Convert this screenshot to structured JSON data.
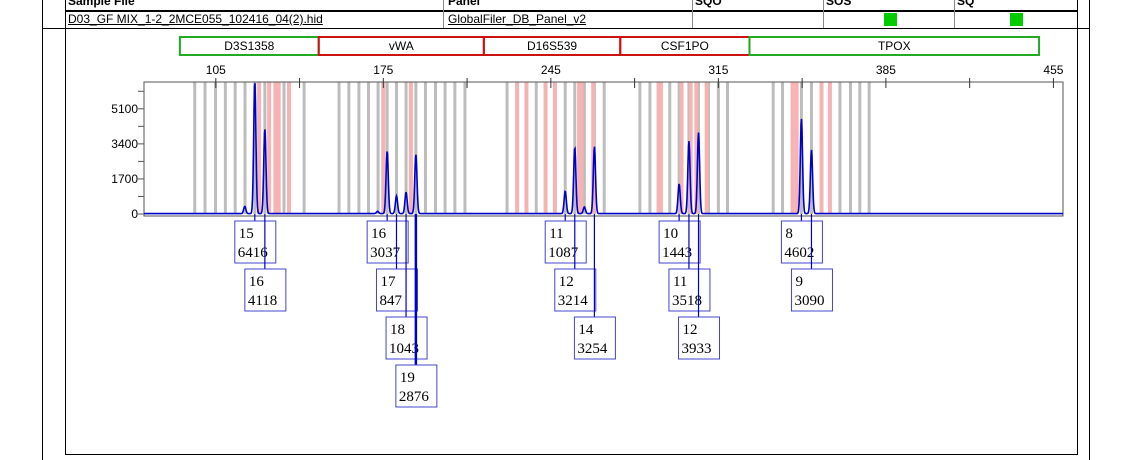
{
  "header": {
    "columns": [
      "Sample File",
      "Panel",
      "SQO",
      "SOS",
      "SQ"
    ],
    "sample_file": "D03_GF MIX_1-2_2MCE055_102416_04(2).hid",
    "panel": "GlobalFiler_DB_Panel_v2",
    "flags": {
      "SOS": "pass",
      "SQ": "pass"
    },
    "flag_color": "#00cc00"
  },
  "chart_data": {
    "type": "line",
    "title": "",
    "xlabel": "",
    "ylabel": "",
    "xlim": [
      75,
      459
    ],
    "ylim": [
      0,
      6400
    ],
    "x_ticks": [
      105,
      175,
      245,
      315,
      385,
      455
    ],
    "y_ticks": [
      0,
      1700,
      3400,
      5100
    ],
    "trace_color": "#0000cc",
    "loci": [
      {
        "name": "D3S1358",
        "range": [
          90,
          148
        ],
        "color": "#22aa22"
      },
      {
        "name": "vWA",
        "range": [
          148,
          217
        ],
        "color": "#cc1111"
      },
      {
        "name": "D16S539",
        "range": [
          217,
          274
        ],
        "color": "#cc1111"
      },
      {
        "name": "CSF1PO",
        "range": [
          274,
          328
        ],
        "color": "#cc1111"
      },
      {
        "name": "TPOX",
        "range": [
          328,
          449
        ],
        "color": "#22aa22"
      }
    ],
    "gray_bins": [
      96.2,
      100.5,
      104.9,
      109.0,
      113.1,
      117.2,
      121.3,
      125.5,
      133.5,
      141.9,
      156.5,
      160.6,
      164.8,
      168.8,
      172.8,
      176.6,
      180.5,
      184.5,
      188.6,
      192.6,
      196.8,
      200.8,
      204.9,
      209.1,
      226.7,
      238.9,
      251.0,
      255.0,
      259.0,
      263.2,
      267.3,
      282.2,
      286.4,
      294.7,
      298.6,
      302.7,
      306.7,
      310.9,
      315.0,
      318.8,
      337.9,
      341.8,
      349.7,
      353.9,
      365.8,
      370.2,
      374.1,
      378.0
    ],
    "pink_bins": [
      123.1,
      127.3,
      129.9,
      131.3,
      135.6,
      175.0,
      186.5,
      230.9,
      234.8,
      242.8,
      246.7,
      256.8,
      257.8,
      262.7,
      290.0,
      291.0,
      299.6,
      303.4,
      305.8,
      310.1,
      346.0,
      347.7,
      358.1,
      361.6
    ],
    "peaks": [
      {
        "locus": "D3S1358",
        "allele": "15",
        "height": 6416,
        "size": 121.3,
        "called": true
      },
      {
        "locus": "D3S1358",
        "allele": "16",
        "height": 4118,
        "size": 125.5,
        "called": true
      },
      {
        "locus": "vWA",
        "allele": "16",
        "height": 3037,
        "size": 176.6,
        "called": true
      },
      {
        "locus": "vWA",
        "allele": "17",
        "height": 847,
        "size": 180.5,
        "called": true
      },
      {
        "locus": "vWA",
        "allele": "18",
        "height": 1043,
        "size": 184.5,
        "called": true
      },
      {
        "locus": "vWA",
        "allele": "19",
        "height": 2876,
        "size": 188.6,
        "called": true
      },
      {
        "locus": "D16S539",
        "allele": "11",
        "height": 1087,
        "size": 251.0,
        "called": true
      },
      {
        "locus": "D16S539",
        "allele": "12",
        "height": 3214,
        "size": 255.0,
        "called": true
      },
      {
        "locus": "D16S539",
        "allele": "14",
        "height": 3254,
        "size": 263.2,
        "called": true
      },
      {
        "locus": "CSF1PO",
        "allele": "10",
        "height": 1443,
        "size": 298.6,
        "called": true
      },
      {
        "locus": "CSF1PO",
        "allele": "11",
        "height": 3518,
        "size": 302.7,
        "called": true
      },
      {
        "locus": "CSF1PO",
        "allele": "12",
        "height": 3933,
        "size": 306.7,
        "called": true
      },
      {
        "locus": "TPOX",
        "allele": "8",
        "height": 4602,
        "size": 349.7,
        "called": true
      },
      {
        "locus": "TPOX",
        "allele": "9",
        "height": 3090,
        "size": 353.9,
        "called": true
      }
    ],
    "minor_peaks": [
      {
        "size": 117.1,
        "height": 350
      },
      {
        "size": 172.6,
        "height": 110
      },
      {
        "size": 259.0,
        "height": 320
      }
    ]
  }
}
